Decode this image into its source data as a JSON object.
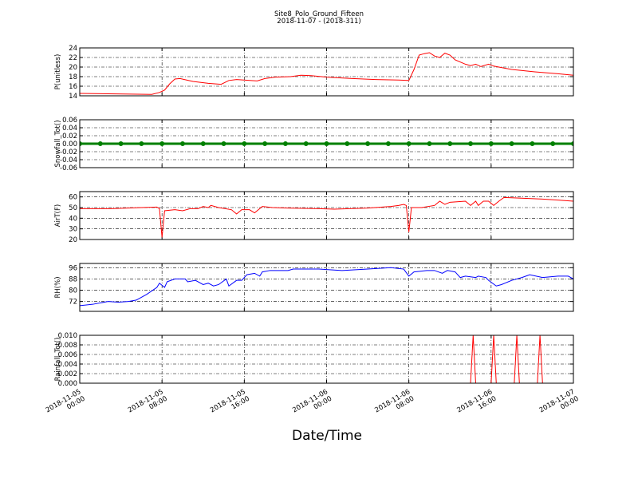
{
  "chart_data": [
    {
      "type": "line",
      "title": "Site8_Polo_Ground_Fifteen",
      "subtitle": "2018-11-07 - (2018-311)",
      "ylabel": "P(unitless)",
      "color": "#ff0000",
      "grid": true,
      "xlim": [
        "2018-11-05 00:00",
        "2018-11-07 00:00"
      ],
      "ylim": [
        14,
        24
      ],
      "yticks": [
        14,
        16,
        18,
        20,
        22,
        24
      ],
      "x": [
        "2018-11-05 00:00",
        "2018-11-05 07:00",
        "2018-11-05 07:45",
        "2018-11-05 08:15",
        "2018-11-05 08:45",
        "2018-11-05 09:15",
        "2018-11-05 09:45",
        "2018-11-05 11:00",
        "2018-11-05 12:30",
        "2018-11-05 13:45",
        "2018-11-05 14:30",
        "2018-11-05 15:15",
        "2018-11-05 17:15",
        "2018-11-05 18:00",
        "2018-11-05 19:00",
        "2018-11-05 20:30",
        "2018-11-05 21:30",
        "2018-11-05 22:30",
        "2018-11-06 00:00",
        "2018-11-06 02:30",
        "2018-11-06 04:45",
        "2018-11-06 07:00",
        "2018-11-06 08:00",
        "2018-11-06 08:30",
        "2018-11-06 09:00",
        "2018-11-06 09:30",
        "2018-11-06 10:00",
        "2018-11-06 10:30",
        "2018-11-06 11:00",
        "2018-11-06 11:30",
        "2018-11-06 12:00",
        "2018-11-06 12:30",
        "2018-11-06 13:30",
        "2018-11-06 14:00",
        "2018-11-06 14:30",
        "2018-11-06 15:00",
        "2018-11-06 15:45",
        "2018-11-06 16:15",
        "2018-11-06 18:00",
        "2018-11-06 20:15",
        "2018-11-06 22:30",
        "2018-11-07 00:00"
      ],
      "values": [
        14.5,
        14.3,
        14.7,
        15.2,
        16.5,
        17.5,
        17.6,
        17.0,
        16.6,
        16.4,
        17.2,
        17.4,
        17.1,
        17.6,
        17.9,
        18.0,
        18.3,
        18.2,
        17.9,
        17.6,
        17.4,
        17.3,
        17.2,
        19.5,
        22.5,
        22.8,
        23.0,
        22.3,
        22.0,
        22.9,
        22.5,
        21.5,
        20.6,
        20.3,
        20.6,
        20.1,
        20.6,
        20.2,
        19.5,
        19.0,
        18.6,
        18.3
      ]
    },
    {
      "type": "line",
      "ylabel": "Snowfall_Tot()",
      "color": "#008000",
      "marker": "o",
      "grid": true,
      "xlim": [
        "2018-11-05 00:00",
        "2018-11-07 00:00"
      ],
      "ylim": [
        -0.06,
        0.06
      ],
      "yticks": [
        -0.06,
        -0.04,
        -0.02,
        {
          "value": 0,
          "label": "0.00"
        },
        0.02,
        0.04,
        0.06
      ],
      "x": [
        "2018-11-05 00:00",
        "2018-11-05 02:00",
        "2018-11-05 04:00",
        "2018-11-05 06:00",
        "2018-11-05 08:00",
        "2018-11-05 10:00",
        "2018-11-05 12:00",
        "2018-11-05 14:00",
        "2018-11-05 16:00",
        "2018-11-05 18:00",
        "2018-11-05 20:00",
        "2018-11-05 22:00",
        "2018-11-06 00:00",
        "2018-11-06 02:00",
        "2018-11-06 04:00",
        "2018-11-06 06:00",
        "2018-11-06 08:00",
        "2018-11-06 10:00",
        "2018-11-06 12:00",
        "2018-11-06 14:00",
        "2018-11-06 16:00",
        "2018-11-06 18:00",
        "2018-11-06 20:00",
        "2018-11-06 22:00",
        "2018-11-07 00:00"
      ],
      "values": [
        0,
        0,
        0,
        0,
        0,
        0,
        0,
        0,
        0,
        0,
        0,
        0,
        0,
        0,
        0,
        0,
        0,
        0,
        0,
        0,
        0,
        0,
        0,
        0,
        0
      ]
    },
    {
      "type": "line",
      "ylabel": "AirT(F)",
      "color": "#ff0000",
      "grid": true,
      "xlim": [
        "2018-11-05 00:00",
        "2018-11-07 00:00"
      ],
      "ylim": [
        20,
        65
      ],
      "yticks": [
        20,
        30,
        40,
        50,
        60
      ],
      "x": [
        "2018-11-05 00:00",
        "2018-11-05 03:00",
        "2018-11-05 06:00",
        "2018-11-05 07:30",
        "2018-11-05 07:45",
        "2018-11-05 08:00",
        "2018-11-05 08:15",
        "2018-11-05 09:15",
        "2018-11-05 10:00",
        "2018-11-05 10:45",
        "2018-11-05 11:30",
        "2018-11-05 12:00",
        "2018-11-05 12:30",
        "2018-11-05 12:45",
        "2018-11-05 13:30",
        "2018-11-05 14:45",
        "2018-11-05 15:15",
        "2018-11-05 15:45",
        "2018-11-05 16:30",
        "2018-11-05 17:00",
        "2018-11-05 17:45",
        "2018-11-05 18:45",
        "2018-11-05 20:15",
        "2018-11-05 23:15",
        "2018-11-06 00:45",
        "2018-11-06 04:00",
        "2018-11-06 06:15",
        "2018-11-06 07:00",
        "2018-11-06 07:30",
        "2018-11-06 07:45",
        "2018-11-06 08:00",
        "2018-11-06 08:15",
        "2018-11-06 09:15",
        "2018-11-06 10:30",
        "2018-11-06 11:00",
        "2018-11-06 11:30",
        "2018-11-06 12:00",
        "2018-11-06 13:30",
        "2018-11-06 14:00",
        "2018-11-06 14:30",
        "2018-11-06 14:45",
        "2018-11-06 15:15",
        "2018-11-06 15:45",
        "2018-11-06 16:15",
        "2018-11-06 16:45",
        "2018-11-06 17:15",
        "2018-11-06 18:30",
        "2018-11-06 21:00",
        "2018-11-06 22:30",
        "2018-11-07 00:00"
      ],
      "values": [
        49,
        49,
        50,
        50.5,
        49,
        22,
        47,
        48,
        47,
        49,
        49,
        51,
        50,
        52,
        50,
        48,
        44,
        48,
        48,
        45,
        51,
        50,
        49.5,
        49,
        48.5,
        49.5,
        51,
        52,
        53,
        52,
        27,
        50,
        50,
        52,
        56,
        53,
        55,
        56,
        52,
        56,
        52,
        56,
        56,
        52,
        56,
        59.5,
        59,
        58,
        57,
        56
      ]
    },
    {
      "type": "line",
      "ylabel": "RH(%)",
      "color": "#0000ff",
      "grid": true,
      "xlim": [
        "2018-11-05 00:00",
        "2018-11-07 00:00"
      ],
      "ylim": [
        65,
        99
      ],
      "yticks": [
        72,
        80,
        88,
        96
      ],
      "x": [
        "2018-11-05 00:00",
        "2018-11-05 01:15",
        "2018-11-05 02:45",
        "2018-11-05 03:45",
        "2018-11-05 04:45",
        "2018-11-05 05:30",
        "2018-11-05 06:30",
        "2018-11-05 07:30",
        "2018-11-05 07:45",
        "2018-11-05 08:15",
        "2018-11-05 08:30",
        "2018-11-05 09:15",
        "2018-11-05 10:15",
        "2018-11-05 10:30",
        "2018-11-05 11:15",
        "2018-11-05 12:00",
        "2018-11-05 12:30",
        "2018-11-05 13:00",
        "2018-11-05 13:30",
        "2018-11-05 14:15",
        "2018-11-05 14:30",
        "2018-11-05 15:15",
        "2018-11-05 15:45",
        "2018-11-05 16:15",
        "2018-11-05 17:00",
        "2018-11-05 17:30",
        "2018-11-05 17:45",
        "2018-11-05 18:30",
        "2018-11-05 20:15",
        "2018-11-05 20:45",
        "2018-11-05 23:15",
        "2018-11-06 01:30",
        "2018-11-06 04:00",
        "2018-11-06 06:15",
        "2018-11-06 07:30",
        "2018-11-06 08:00",
        "2018-11-06 08:30",
        "2018-11-06 09:45",
        "2018-11-06 10:30",
        "2018-11-06 11:15",
        "2018-11-06 11:45",
        "2018-11-06 12:30",
        "2018-11-06 13:00",
        "2018-11-06 13:30",
        "2018-11-06 14:30",
        "2018-11-06 14:45",
        "2018-11-06 15:30",
        "2018-11-06 15:45",
        "2018-11-06 16:30",
        "2018-11-06 17:00",
        "2018-11-06 18:00",
        "2018-11-06 19:00",
        "2018-11-06 19:45",
        "2018-11-06 21:00",
        "2018-11-06 22:30",
        "2018-11-06 23:30",
        "2018-11-07 00:00"
      ],
      "values": [
        69,
        70,
        72,
        71.5,
        72,
        73,
        77,
        82,
        85,
        82,
        86,
        88,
        88,
        86,
        87,
        84,
        85,
        83,
        84,
        88,
        83,
        87,
        87,
        91,
        92,
        90,
        93,
        94,
        94,
        95,
        95,
        94,
        95,
        96,
        95,
        90,
        93,
        94,
        94,
        92,
        94,
        93,
        89,
        90,
        89,
        90,
        89,
        87,
        83,
        84,
        87,
        89,
        91,
        89,
        90,
        90,
        88
      ]
    },
    {
      "type": "line",
      "ylabel": "Rainfall_Tot()",
      "xlabel": "Date/Time",
      "color": "#ff0000",
      "grid": true,
      "xlim": [
        "2018-11-05 00:00",
        "2018-11-07 00:00"
      ],
      "ylim": [
        0,
        0.01
      ],
      "yticks": [
        {
          "value": 0,
          "label": "0.000"
        },
        {
          "value": 0.002,
          "label": "0.002"
        },
        {
          "value": 0.004,
          "label": "0.004"
        },
        {
          "value": 0.006,
          "label": "0.006"
        },
        {
          "value": 0.008,
          "label": "0.008"
        },
        {
          "value": 0.01,
          "label": "0.010"
        }
      ],
      "xticks": [
        "2018-11-05 00:00",
        "2018-11-05 08:00",
        "2018-11-05 16:00",
        "2018-11-06 00:00",
        "2018-11-06 08:00",
        "2018-11-06 16:00",
        "2018-11-07 00:00"
      ],
      "x": [
        "2018-11-05 00:00",
        "2018-11-06 14:00",
        "2018-11-06 14:15",
        "2018-11-06 14:30",
        "2018-11-06 16:00",
        "2018-11-06 16:15",
        "2018-11-06 16:30",
        "2018-11-06 18:15",
        "2018-11-06 18:30",
        "2018-11-06 18:45",
        "2018-11-06 20:30",
        "2018-11-06 20:45",
        "2018-11-06 21:00",
        "2018-11-07 00:00"
      ],
      "values": [
        0,
        0,
        0.01,
        0,
        0,
        0.01,
        0,
        0,
        0.01,
        0,
        0,
        0.01,
        0,
        0
      ]
    }
  ]
}
